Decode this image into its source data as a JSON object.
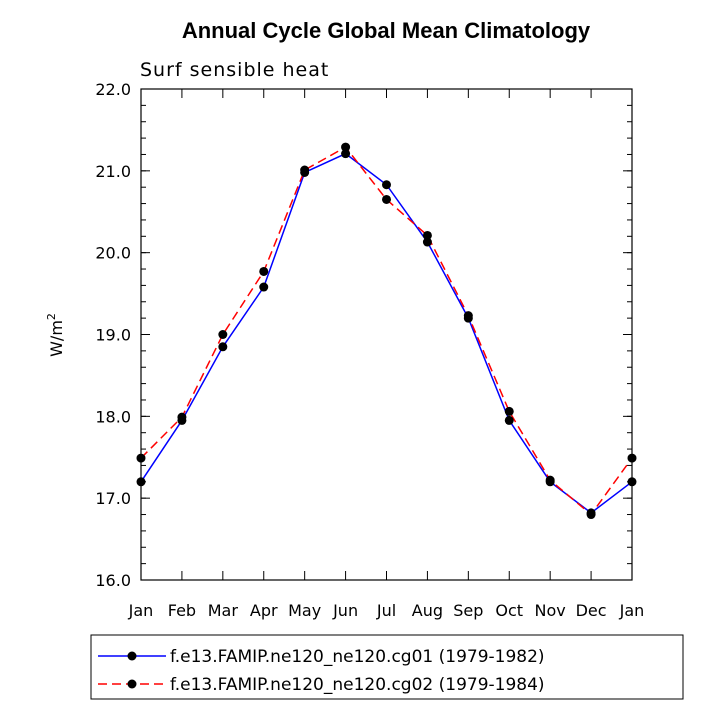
{
  "chart_data": {
    "type": "line",
    "title": "Annual Cycle Global Mean Climatology",
    "subtitle": "Surf sensible heat",
    "ylabel_base": "W/m",
    "ylabel_sup": "2",
    "xlabel": "",
    "categories": [
      "Jan",
      "Feb",
      "Mar",
      "Apr",
      "May",
      "Jun",
      "Jul",
      "Aug",
      "Sep",
      "Oct",
      "Nov",
      "Dec",
      "Jan"
    ],
    "ylim": [
      16.0,
      22.0
    ],
    "yticks": [
      "16.0",
      "17.0",
      "18.0",
      "19.0",
      "20.0",
      "21.0",
      "22.0"
    ],
    "grid": false,
    "legend_position": "bottom",
    "series": [
      {
        "name": "f.e13.FAMIP.ne120_ne120.cg01 (1979-1982)",
        "color": "#0000ff",
        "style": "solid",
        "values": [
          17.2,
          17.95,
          18.85,
          19.58,
          20.98,
          21.21,
          20.83,
          20.13,
          19.2,
          17.95,
          17.2,
          16.82,
          17.2
        ]
      },
      {
        "name": "f.e13.FAMIP.ne120_ne120.cg02 (1979-1984)",
        "color": "#ff0000",
        "style": "dashed",
        "values": [
          17.49,
          17.99,
          19.0,
          19.77,
          21.01,
          21.29,
          20.65,
          20.21,
          19.23,
          18.06,
          17.22,
          16.8,
          17.49
        ]
      }
    ]
  }
}
